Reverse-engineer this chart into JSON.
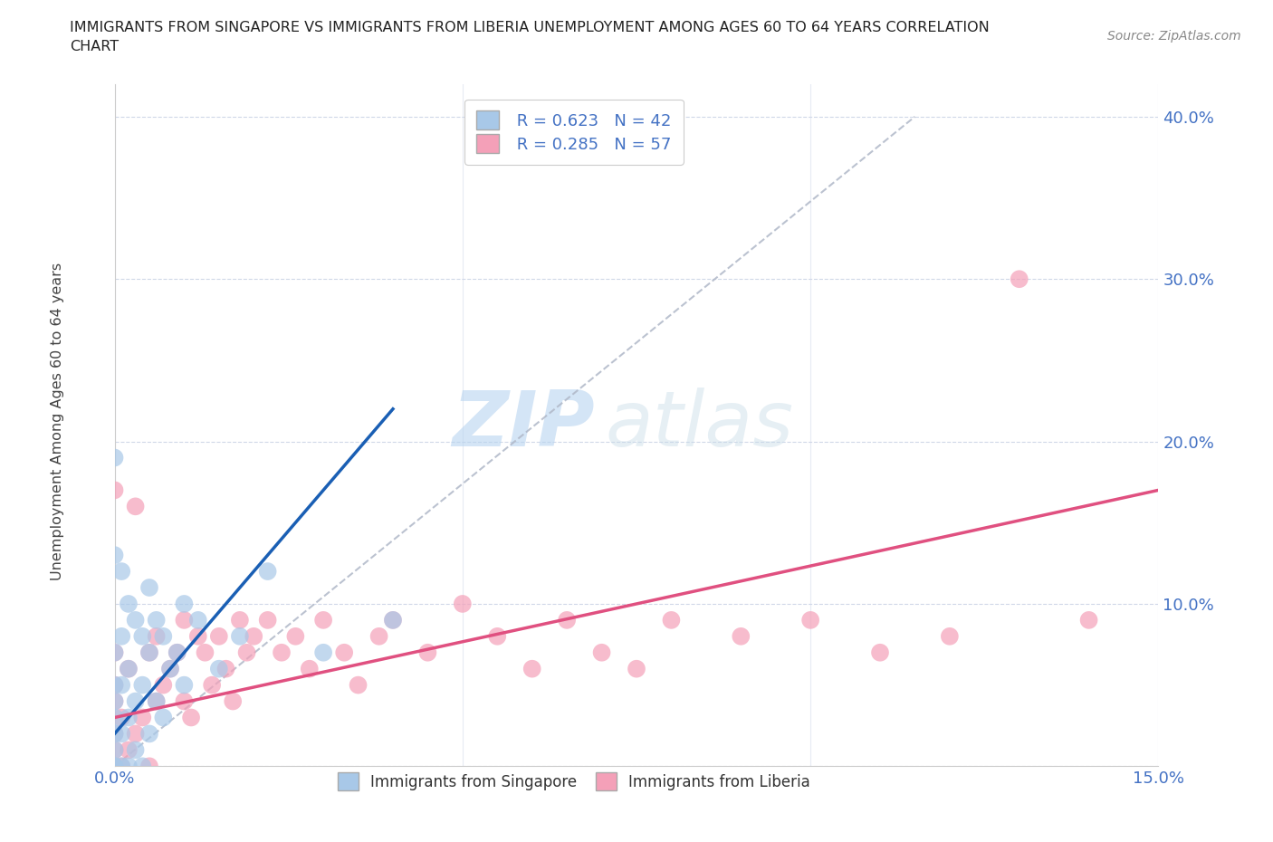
{
  "title_line1": "IMMIGRANTS FROM SINGAPORE VS IMMIGRANTS FROM LIBERIA UNEMPLOYMENT AMONG AGES 60 TO 64 YEARS CORRELATION",
  "title_line2": "CHART",
  "source": "Source: ZipAtlas.com",
  "ylabel": "Unemployment Among Ages 60 to 64 years",
  "xlim": [
    0.0,
    0.15
  ],
  "ylim": [
    0.0,
    0.42
  ],
  "xticks": [
    0.0,
    0.05,
    0.1,
    0.15
  ],
  "xticklabels": [
    "0.0%",
    "",
    "",
    "15.0%"
  ],
  "yticks": [
    0.0,
    0.1,
    0.2,
    0.3,
    0.4
  ],
  "yticklabels": [
    "",
    "10.0%",
    "20.0%",
    "30.0%",
    "40.0%"
  ],
  "singapore_color": "#a8c8e8",
  "liberia_color": "#f4a0b8",
  "singapore_line_color": "#1a5fb4",
  "liberia_line_color": "#e05080",
  "r_singapore": 0.623,
  "n_singapore": 42,
  "r_liberia": 0.285,
  "n_liberia": 57,
  "legend_labels": [
    "Immigrants from Singapore",
    "Immigrants from Liberia"
  ],
  "watermark_zip": "ZIP",
  "watermark_atlas": "atlas",
  "singapore_scatter_x": [
    0.0,
    0.0,
    0.0,
    0.0,
    0.0,
    0.0,
    0.0,
    0.0,
    0.0,
    0.0,
    0.001,
    0.001,
    0.001,
    0.001,
    0.001,
    0.002,
    0.002,
    0.002,
    0.002,
    0.003,
    0.003,
    0.003,
    0.004,
    0.004,
    0.004,
    0.005,
    0.005,
    0.005,
    0.006,
    0.006,
    0.007,
    0.007,
    0.008,
    0.009,
    0.01,
    0.01,
    0.012,
    0.015,
    0.018,
    0.022,
    0.03,
    0.04
  ],
  "singapore_scatter_y": [
    0.0,
    0.0,
    0.01,
    0.02,
    0.03,
    0.04,
    0.05,
    0.07,
    0.13,
    0.19,
    0.0,
    0.02,
    0.05,
    0.08,
    0.12,
    0.0,
    0.03,
    0.06,
    0.1,
    0.01,
    0.04,
    0.09,
    0.0,
    0.05,
    0.08,
    0.02,
    0.07,
    0.11,
    0.04,
    0.09,
    0.03,
    0.08,
    0.06,
    0.07,
    0.05,
    0.1,
    0.09,
    0.06,
    0.08,
    0.12,
    0.07,
    0.09
  ],
  "liberia_scatter_x": [
    0.0,
    0.0,
    0.0,
    0.0,
    0.0,
    0.0,
    0.0,
    0.0,
    0.001,
    0.001,
    0.002,
    0.002,
    0.003,
    0.003,
    0.004,
    0.005,
    0.005,
    0.006,
    0.006,
    0.007,
    0.008,
    0.009,
    0.01,
    0.01,
    0.011,
    0.012,
    0.013,
    0.014,
    0.015,
    0.016,
    0.017,
    0.018,
    0.019,
    0.02,
    0.022,
    0.024,
    0.026,
    0.028,
    0.03,
    0.033,
    0.035,
    0.038,
    0.04,
    0.045,
    0.05,
    0.055,
    0.06,
    0.065,
    0.07,
    0.075,
    0.08,
    0.09,
    0.1,
    0.11,
    0.12,
    0.13,
    0.14
  ],
  "liberia_scatter_y": [
    0.0,
    0.0,
    0.01,
    0.02,
    0.04,
    0.05,
    0.07,
    0.17,
    0.0,
    0.03,
    0.01,
    0.06,
    0.02,
    0.16,
    0.03,
    0.0,
    0.07,
    0.04,
    0.08,
    0.05,
    0.06,
    0.07,
    0.04,
    0.09,
    0.03,
    0.08,
    0.07,
    0.05,
    0.08,
    0.06,
    0.04,
    0.09,
    0.07,
    0.08,
    0.09,
    0.07,
    0.08,
    0.06,
    0.09,
    0.07,
    0.05,
    0.08,
    0.09,
    0.07,
    0.1,
    0.08,
    0.06,
    0.09,
    0.07,
    0.06,
    0.09,
    0.08,
    0.09,
    0.07,
    0.08,
    0.3,
    0.09
  ],
  "sg_trend_x": [
    0.0,
    0.04
  ],
  "sg_trend_y": [
    0.02,
    0.22
  ],
  "lib_trend_x": [
    0.0,
    0.15
  ],
  "lib_trend_y": [
    0.03,
    0.17
  ],
  "ref_line_x": [
    0.0,
    0.115
  ],
  "ref_line_y": [
    0.0,
    0.4
  ]
}
